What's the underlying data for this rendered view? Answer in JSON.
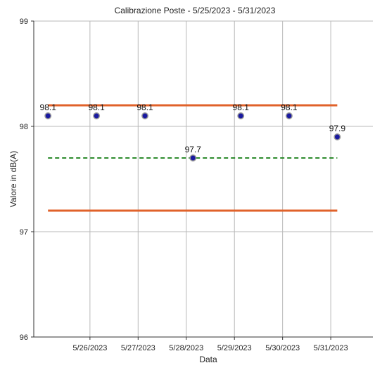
{
  "chart_data": {
    "type": "scatter",
    "title": "Calibrazione Poste - 5/25/2023 - 5/31/2023",
    "xlabel": "Data",
    "ylabel": "Valore in dB(A)",
    "x_type": "date",
    "x_tick_labels": [
      "5/26/2023",
      "5/27/2023",
      "5/28/2023",
      "5/29/2023",
      "5/30/2023",
      "5/31/2023"
    ],
    "x_ticks": [
      "2023-05-26",
      "2023-05-27",
      "2023-05-28",
      "2023-05-29",
      "2023-05-30",
      "2023-05-31"
    ],
    "xlim": [
      "2023-05-24T20:00",
      "2023-05-31T21:00"
    ],
    "ylim": [
      96,
      99
    ],
    "y_ticks": [
      96,
      97,
      98,
      99
    ],
    "grid": true,
    "series": [
      {
        "type": "scatter",
        "color": "#1a1aa0",
        "x": [
          "2023-05-25T03:05",
          "2023-05-26T03:15",
          "2023-05-27T03:25",
          "2023-05-28T03:20",
          "2023-05-29T03:10",
          "2023-05-30T03:15",
          "2023-05-31T03:15"
        ],
        "y": [
          98.1,
          98.1,
          98.1,
          97.7,
          98.1,
          98.1,
          97.9
        ],
        "labels": [
          "98.1",
          "98.1",
          "98.1",
          "97.7",
          "98.1",
          "98.1",
          "97.9"
        ]
      }
    ],
    "reference_lines": [
      {
        "style": "solid",
        "color": "#e0622a",
        "y": 98.2,
        "x_start": "2023-05-25T03:05",
        "x_end": "2023-05-31T03:15"
      },
      {
        "style": "solid",
        "color": "#e0622a",
        "y": 97.2,
        "x_start": "2023-05-25T03:05",
        "x_end": "2023-05-31T03:15"
      },
      {
        "style": "dashed",
        "color": "#2e8b2e",
        "y": 97.7,
        "x_start": "2023-05-25T03:05",
        "x_end": "2023-05-31T03:15"
      }
    ]
  }
}
